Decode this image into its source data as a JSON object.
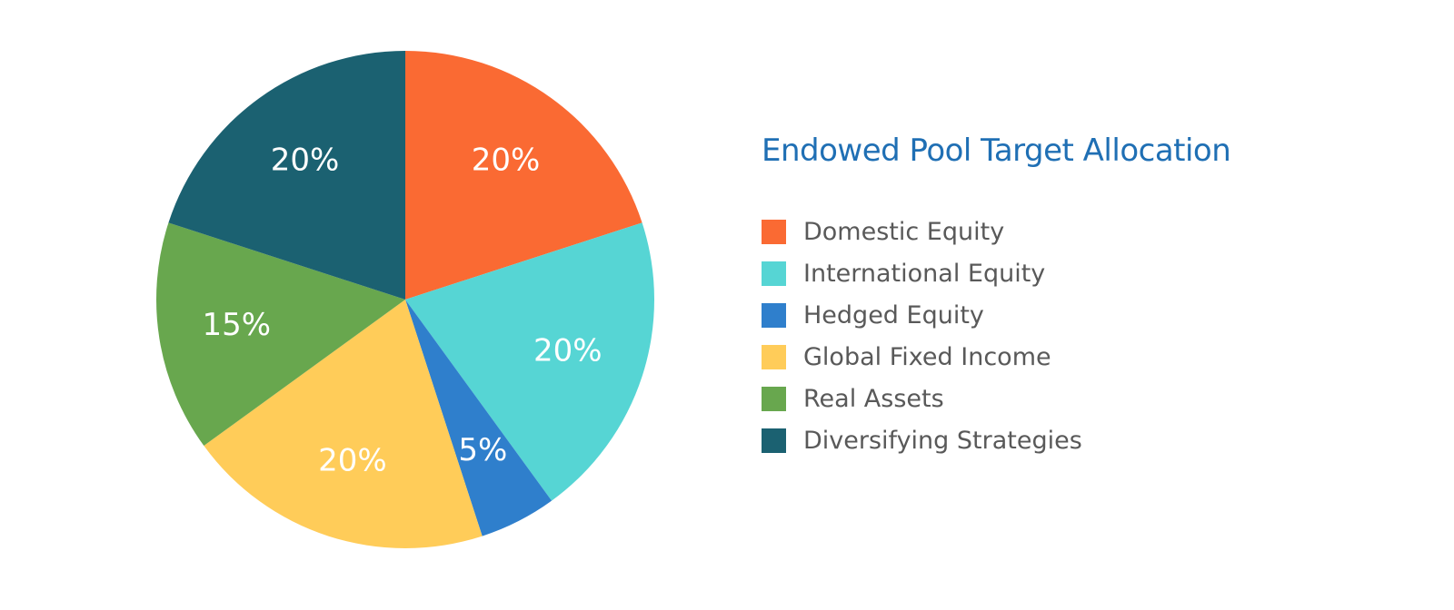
{
  "chart_data": {
    "type": "pie",
    "title": "Endowed Pool Target Allocation",
    "start": "12 o'clock",
    "direction": "clockwise",
    "legend_position": "right",
    "slices": [
      {
        "label": "Domestic Equity",
        "value": 20,
        "value_label": "20%",
        "color": "#fa6a33"
      },
      {
        "label": "International Equity",
        "value": 20,
        "value_label": "20%",
        "color": "#56d5d4"
      },
      {
        "label": "Hedged Equity",
        "value": 5,
        "value_label": "5%",
        "color": "#2f7fcc"
      },
      {
        "label": "Global Fixed Income",
        "value": 20,
        "value_label": "20%",
        "color": "#ffcc59"
      },
      {
        "label": "Real Assets",
        "value": 15,
        "value_label": "15%",
        "color": "#68a74e"
      },
      {
        "label": "Diversifying Strategies",
        "value": 20,
        "value_label": "20%",
        "color": "#1b6171"
      }
    ]
  }
}
